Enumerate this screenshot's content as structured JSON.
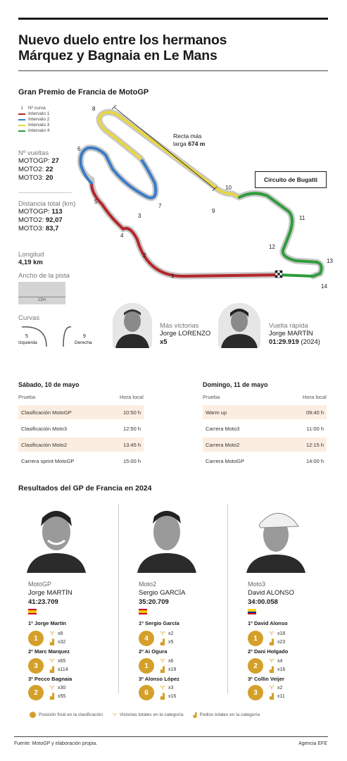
{
  "headline": {
    "line1": "Nuevo duelo entre los hermanos",
    "line2": "Márquez y Bagnaia en Le Mans"
  },
  "subhead": "Gran Premio de Francia de MotoGP",
  "legend": {
    "curve": "Nº curva",
    "curve_marker": "1",
    "items": [
      {
        "label": "Intervalo 1",
        "color": "#b5262a"
      },
      {
        "label": "Intervalo 2",
        "color": "#3a7bc8"
      },
      {
        "label": "Intervalo 3",
        "color": "#e8d640"
      },
      {
        "label": "Intervalo 4",
        "color": "#2e9c3c"
      }
    ]
  },
  "laps": {
    "label": "Nº vueltas",
    "rows": [
      {
        "cat": "MOTOGP:",
        "value": "27"
      },
      {
        "cat": "MOTO2:",
        "value": "22"
      },
      {
        "cat": "MOTO3:",
        "value": "20"
      }
    ]
  },
  "distance": {
    "label": "Distancia total (km)",
    "rows": [
      {
        "cat": "MOTOGP:",
        "value": "113"
      },
      {
        "cat": "MOTO2:",
        "value": "92,07"
      },
      {
        "cat": "MOTO3:",
        "value": "83,7"
      }
    ]
  },
  "length": {
    "label": "Longitud",
    "value": "4,19 km"
  },
  "width": {
    "label": "Ancho de la pista",
    "value": "13m"
  },
  "curves": {
    "label": "Curvas",
    "left_count": "5",
    "left_label": "Izquierda",
    "right_count": "9",
    "right_label": "Derecha"
  },
  "circuit_name": "Circuito de Bugatti",
  "straight": {
    "line1": "Recta más",
    "line2_prefix": "larga ",
    "value": "674 m"
  },
  "turns": [
    "1",
    "2",
    "3",
    "4",
    "5",
    "6",
    "7",
    "8",
    "9",
    "10",
    "11",
    "12",
    "13",
    "14"
  ],
  "most_wins": {
    "label": "Más victorias",
    "name": "Jorge LORENZO",
    "value": "x5"
  },
  "fast_lap": {
    "label": "Vuelta rápida",
    "name": "Jorge MARTÍN",
    "time": "01:29.919",
    "year": "(2024)"
  },
  "schedule": {
    "saturday": {
      "title": "Sábado, 10 de mayo",
      "col1": "Prueba",
      "col2": "Hora local",
      "rows": [
        {
          "event": "Clasificación MotoGP",
          "time": "10:50 h"
        },
        {
          "event": "Clasificación Moto3",
          "time": "12:50 h"
        },
        {
          "event": "Clasificación Moto2",
          "time": "13:45 h"
        },
        {
          "event": "Carrera sprint MotoGP",
          "time": "15:00 h"
        }
      ]
    },
    "sunday": {
      "title": "Domingo, 11 de mayo",
      "col1": "Prueba",
      "col2": "Hora local",
      "rows": [
        {
          "event": "Warm up",
          "time": "09:40 h"
        },
        {
          "event": "Carrera Moto3",
          "time": "11:00 h"
        },
        {
          "event": "Carrera Moto2",
          "time": "12:15 h"
        },
        {
          "event": "Carrera MotoGP",
          "time": "14:00 h"
        }
      ]
    }
  },
  "results_title": "Resultados del GP de Francia en 2024",
  "results": [
    {
      "category": "MotoGP",
      "winner": "Jorge MARTÍN",
      "time": "41:23.709",
      "flag": "spain",
      "podium": [
        {
          "title": "1º Jorge Martín",
          "pos": "1",
          "wins": "x8",
          "podiums": "x32"
        },
        {
          "title": "2º Marc Marquez",
          "pos": "3",
          "wins": "x65",
          "podiums": "x114"
        },
        {
          "title": "3º Pecco Bagnaia",
          "pos": "2",
          "wins": "x30",
          "podiums": "x55"
        }
      ]
    },
    {
      "category": "Moto2",
      "winner": "Sergio GARCÍA",
      "time": "35:20.709",
      "flag": "spain",
      "podium": [
        {
          "title": "1º Sergio García",
          "pos": "4",
          "wins": "x2",
          "podiums": "x5"
        },
        {
          "title": "2º Ai Ogura",
          "pos": "1",
          "wins": "x6",
          "podiums": "x19"
        },
        {
          "title": "3º Alonso López",
          "pos": "6",
          "wins": "x3",
          "podiums": "x16"
        }
      ]
    },
    {
      "category": "Moto3",
      "winner": "David ALONSO",
      "time": "34:00.058",
      "flag": "colombia",
      "podium": [
        {
          "title": "1º David Alonso",
          "pos": "1",
          "wins": "x18",
          "podiums": "x23"
        },
        {
          "title": "2º Dani Holgado",
          "pos": "2",
          "wins": "x4",
          "podiums": "x16"
        },
        {
          "title": "3º Collin Veijer",
          "pos": "3",
          "wins": "x2",
          "podiums": "x11"
        }
      ]
    }
  ],
  "footer_legend": {
    "position": "Posición final en la clasificación",
    "wins": "Victorias totales en la categoría",
    "podiums": "Podios totales en la categoría"
  },
  "source": "Fuente: MotoGP y elaboración propia.",
  "agency": "Agencia EFE",
  "colors": {
    "accent": "#d4a02a",
    "highlight_row": "#fbeee0"
  }
}
